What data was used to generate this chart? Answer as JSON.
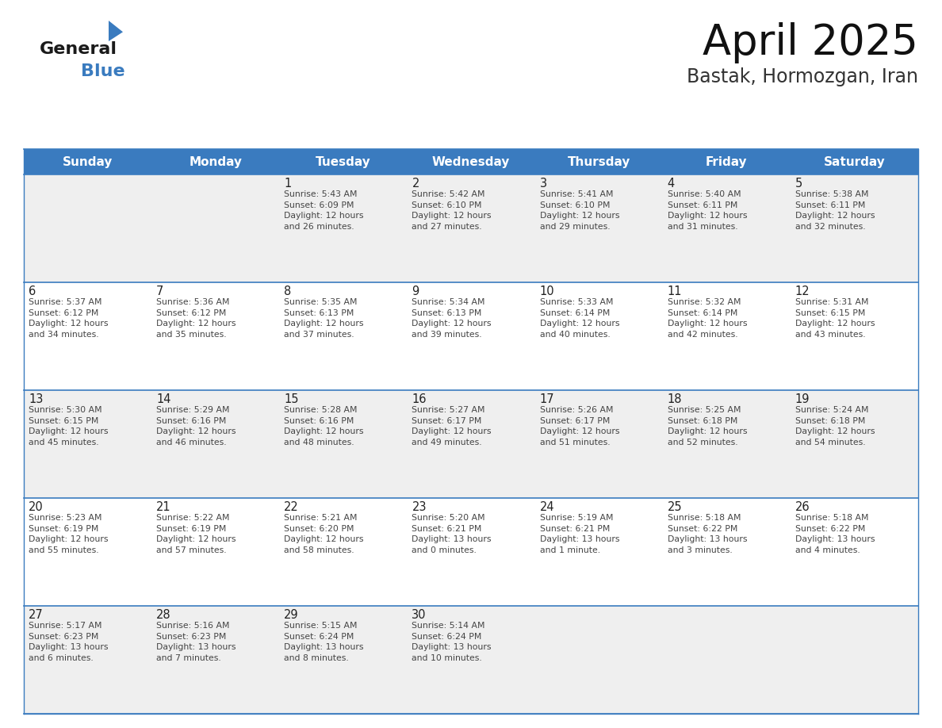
{
  "title": "April 2025",
  "subtitle": "Bastak, Hormozgan, Iran",
  "header_bg": "#3a7bbf",
  "header_text_color": "#ffffff",
  "days_of_week": [
    "Sunday",
    "Monday",
    "Tuesday",
    "Wednesday",
    "Thursday",
    "Friday",
    "Saturday"
  ],
  "cell_bg_odd": "#efefef",
  "cell_bg_even": "#ffffff",
  "cell_border_color": "#3a7bbf",
  "text_color": "#444444",
  "day_num_color": "#222222",
  "calendar": [
    [
      {
        "day": "",
        "info": ""
      },
      {
        "day": "",
        "info": ""
      },
      {
        "day": "1",
        "info": "Sunrise: 5:43 AM\nSunset: 6:09 PM\nDaylight: 12 hours\nand 26 minutes."
      },
      {
        "day": "2",
        "info": "Sunrise: 5:42 AM\nSunset: 6:10 PM\nDaylight: 12 hours\nand 27 minutes."
      },
      {
        "day": "3",
        "info": "Sunrise: 5:41 AM\nSunset: 6:10 PM\nDaylight: 12 hours\nand 29 minutes."
      },
      {
        "day": "4",
        "info": "Sunrise: 5:40 AM\nSunset: 6:11 PM\nDaylight: 12 hours\nand 31 minutes."
      },
      {
        "day": "5",
        "info": "Sunrise: 5:38 AM\nSunset: 6:11 PM\nDaylight: 12 hours\nand 32 minutes."
      }
    ],
    [
      {
        "day": "6",
        "info": "Sunrise: 5:37 AM\nSunset: 6:12 PM\nDaylight: 12 hours\nand 34 minutes."
      },
      {
        "day": "7",
        "info": "Sunrise: 5:36 AM\nSunset: 6:12 PM\nDaylight: 12 hours\nand 35 minutes."
      },
      {
        "day": "8",
        "info": "Sunrise: 5:35 AM\nSunset: 6:13 PM\nDaylight: 12 hours\nand 37 minutes."
      },
      {
        "day": "9",
        "info": "Sunrise: 5:34 AM\nSunset: 6:13 PM\nDaylight: 12 hours\nand 39 minutes."
      },
      {
        "day": "10",
        "info": "Sunrise: 5:33 AM\nSunset: 6:14 PM\nDaylight: 12 hours\nand 40 minutes."
      },
      {
        "day": "11",
        "info": "Sunrise: 5:32 AM\nSunset: 6:14 PM\nDaylight: 12 hours\nand 42 minutes."
      },
      {
        "day": "12",
        "info": "Sunrise: 5:31 AM\nSunset: 6:15 PM\nDaylight: 12 hours\nand 43 minutes."
      }
    ],
    [
      {
        "day": "13",
        "info": "Sunrise: 5:30 AM\nSunset: 6:15 PM\nDaylight: 12 hours\nand 45 minutes."
      },
      {
        "day": "14",
        "info": "Sunrise: 5:29 AM\nSunset: 6:16 PM\nDaylight: 12 hours\nand 46 minutes."
      },
      {
        "day": "15",
        "info": "Sunrise: 5:28 AM\nSunset: 6:16 PM\nDaylight: 12 hours\nand 48 minutes."
      },
      {
        "day": "16",
        "info": "Sunrise: 5:27 AM\nSunset: 6:17 PM\nDaylight: 12 hours\nand 49 minutes."
      },
      {
        "day": "17",
        "info": "Sunrise: 5:26 AM\nSunset: 6:17 PM\nDaylight: 12 hours\nand 51 minutes."
      },
      {
        "day": "18",
        "info": "Sunrise: 5:25 AM\nSunset: 6:18 PM\nDaylight: 12 hours\nand 52 minutes."
      },
      {
        "day": "19",
        "info": "Sunrise: 5:24 AM\nSunset: 6:18 PM\nDaylight: 12 hours\nand 54 minutes."
      }
    ],
    [
      {
        "day": "20",
        "info": "Sunrise: 5:23 AM\nSunset: 6:19 PM\nDaylight: 12 hours\nand 55 minutes."
      },
      {
        "day": "21",
        "info": "Sunrise: 5:22 AM\nSunset: 6:19 PM\nDaylight: 12 hours\nand 57 minutes."
      },
      {
        "day": "22",
        "info": "Sunrise: 5:21 AM\nSunset: 6:20 PM\nDaylight: 12 hours\nand 58 minutes."
      },
      {
        "day": "23",
        "info": "Sunrise: 5:20 AM\nSunset: 6:21 PM\nDaylight: 13 hours\nand 0 minutes."
      },
      {
        "day": "24",
        "info": "Sunrise: 5:19 AM\nSunset: 6:21 PM\nDaylight: 13 hours\nand 1 minute."
      },
      {
        "day": "25",
        "info": "Sunrise: 5:18 AM\nSunset: 6:22 PM\nDaylight: 13 hours\nand 3 minutes."
      },
      {
        "day": "26",
        "info": "Sunrise: 5:18 AM\nSunset: 6:22 PM\nDaylight: 13 hours\nand 4 minutes."
      }
    ],
    [
      {
        "day": "27",
        "info": "Sunrise: 5:17 AM\nSunset: 6:23 PM\nDaylight: 13 hours\nand 6 minutes."
      },
      {
        "day": "28",
        "info": "Sunrise: 5:16 AM\nSunset: 6:23 PM\nDaylight: 13 hours\nand 7 minutes."
      },
      {
        "day": "29",
        "info": "Sunrise: 5:15 AM\nSunset: 6:24 PM\nDaylight: 13 hours\nand 8 minutes."
      },
      {
        "day": "30",
        "info": "Sunrise: 5:14 AM\nSunset: 6:24 PM\nDaylight: 13 hours\nand 10 minutes."
      },
      {
        "day": "",
        "info": ""
      },
      {
        "day": "",
        "info": ""
      },
      {
        "day": "",
        "info": ""
      }
    ]
  ],
  "logo_text_general": "General",
  "logo_text_blue": "Blue",
  "logo_color_general": "#1a1a1a",
  "logo_color_blue": "#3a7bbf",
  "logo_triangle_color": "#3a7bbf",
  "fig_width": 11.88,
  "fig_height": 9.18,
  "dpi": 100
}
